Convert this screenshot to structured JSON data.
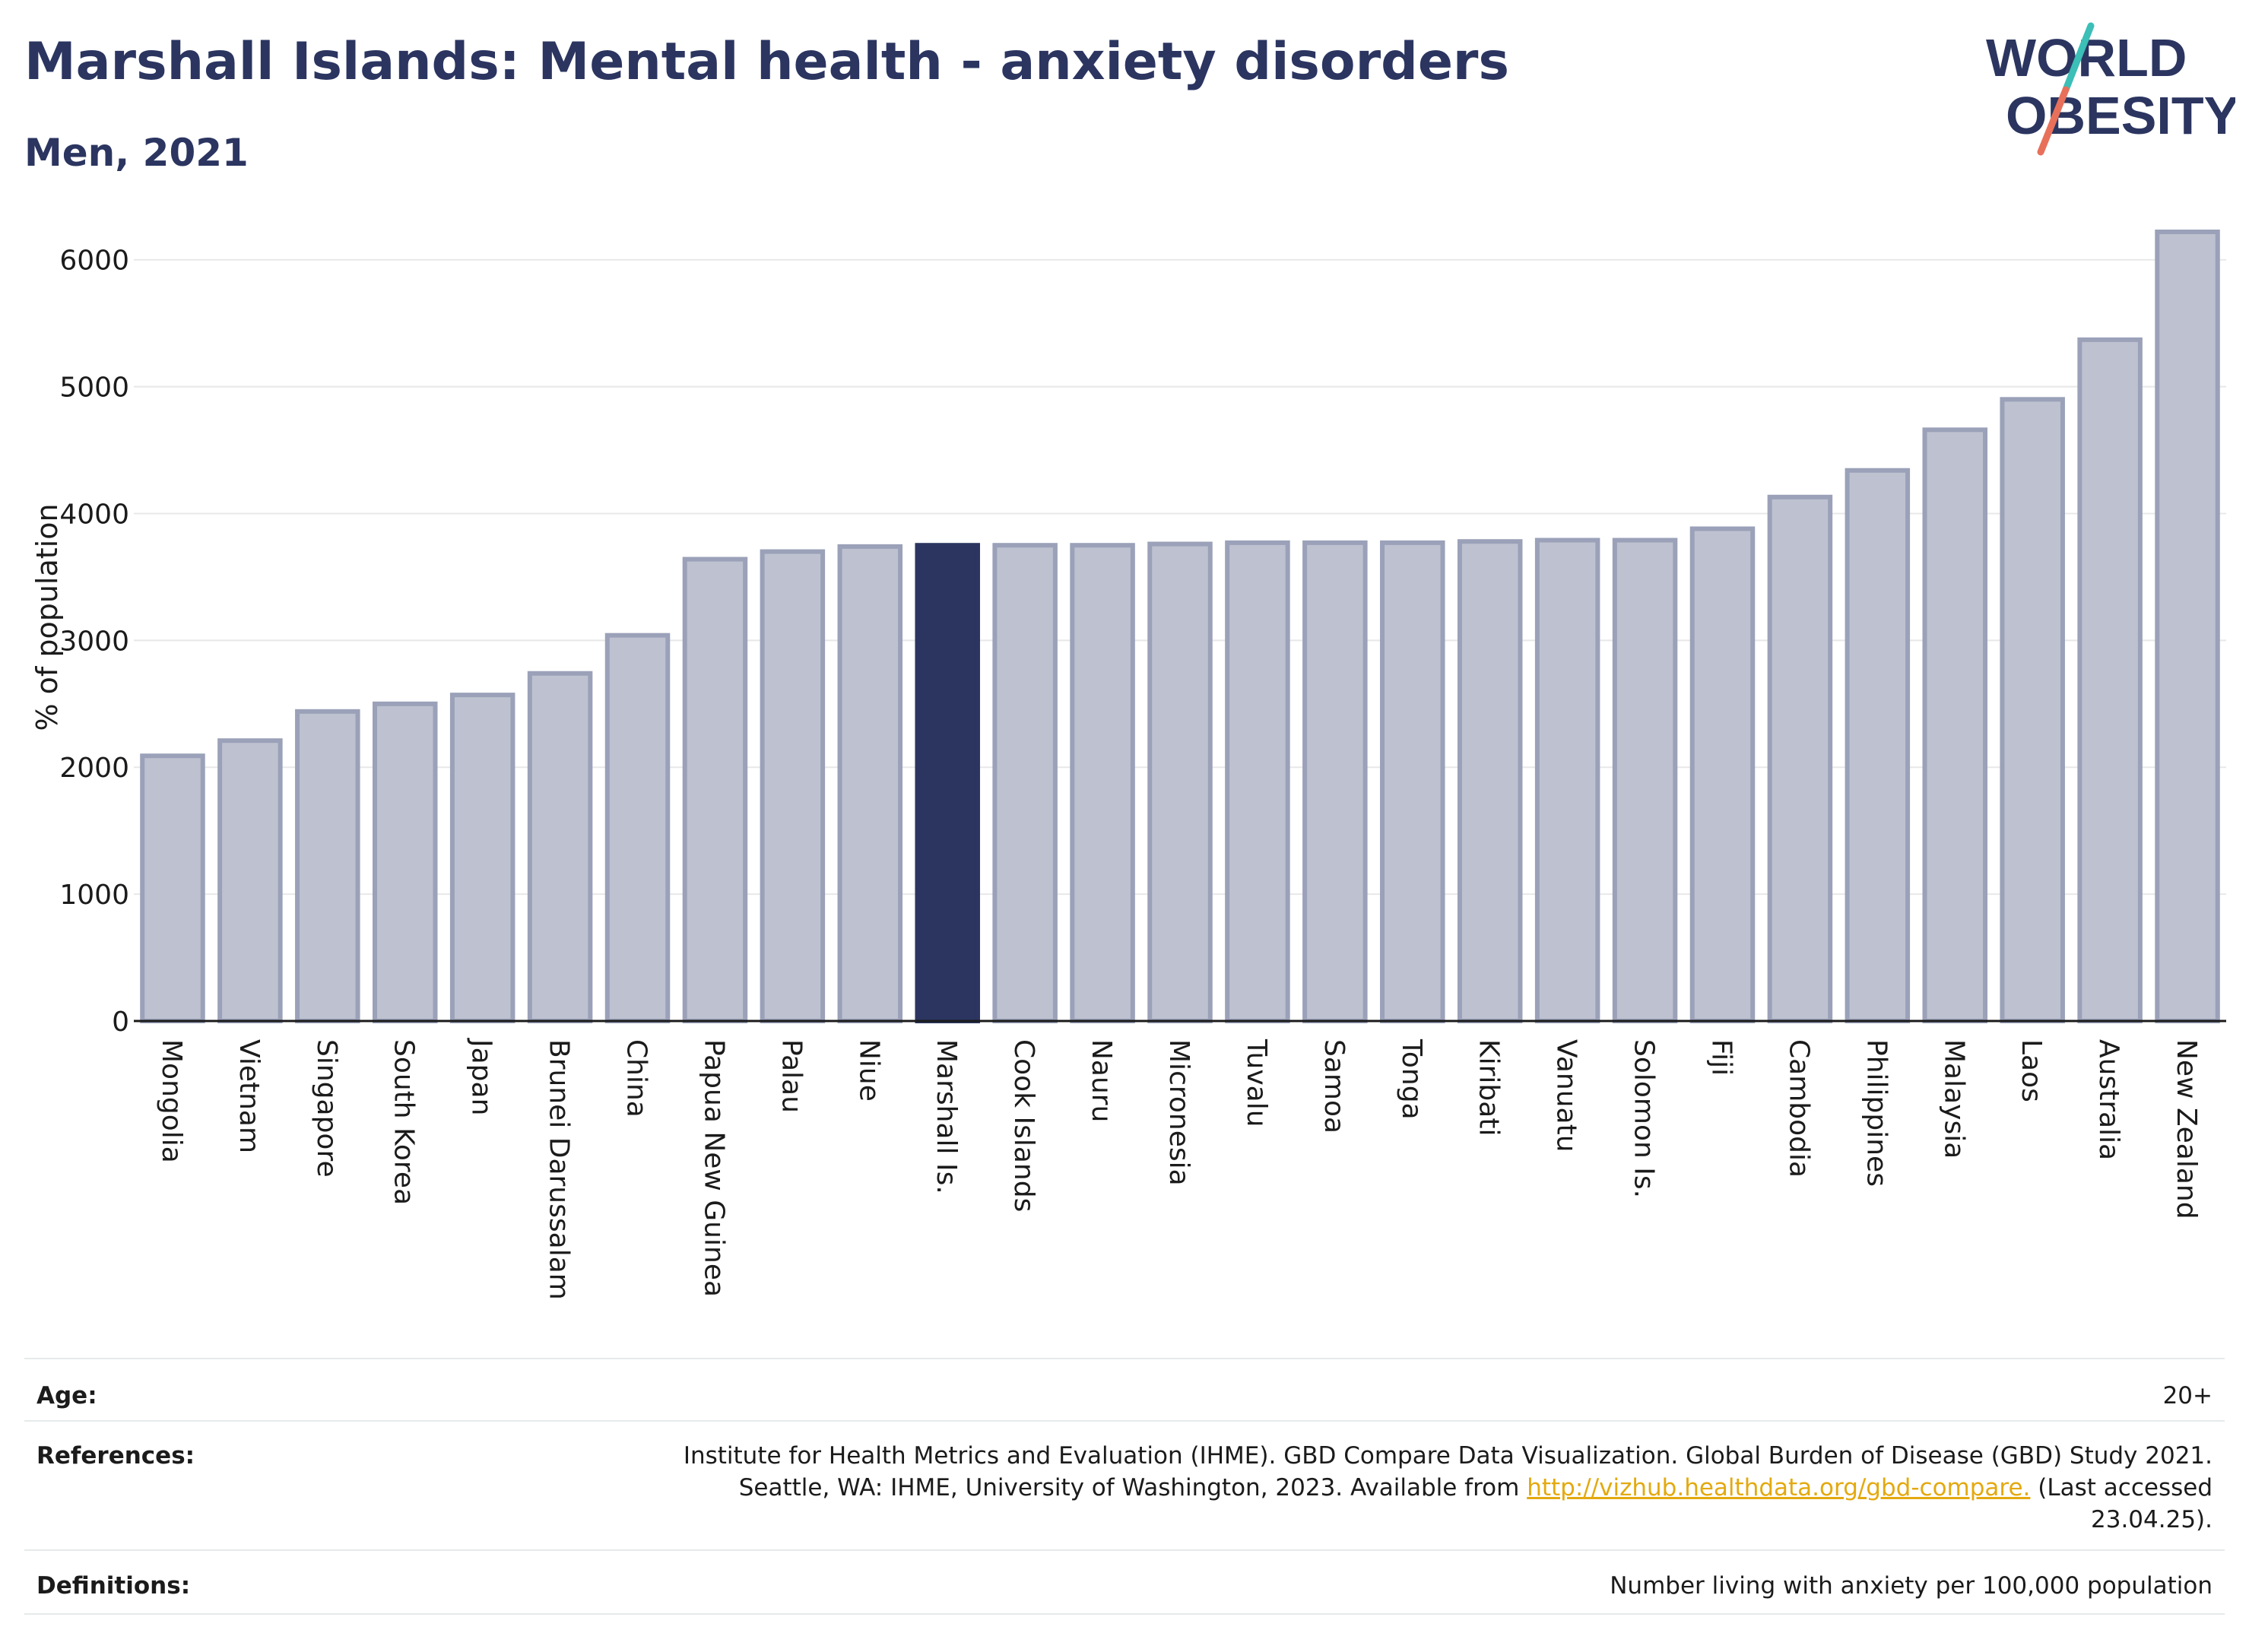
{
  "header": {
    "title": "Marshall Islands: Mental health - anxiety disorders",
    "subtitle": "Men, 2021",
    "logo_text": [
      "WORLD",
      "OBESITY"
    ]
  },
  "colors": {
    "title": "#2b3560",
    "bar": "#bec2d0",
    "bar_border": "#9aa1b8",
    "highlight": "#2b3560",
    "grid": "#e8e8e8",
    "link": "#e3a90f",
    "logo_teal": "#3bbfb6",
    "logo_coral": "#e8705a"
  },
  "chart_data": {
    "type": "bar",
    "title": "Marshall Islands: Mental health - anxiety disorders",
    "subtitle": "Men, 2021",
    "xlabel": "",
    "ylabel": "% of population",
    "ylim": [
      0,
      6250
    ],
    "yticks": [
      0,
      1000,
      2000,
      3000,
      4000,
      5000,
      6000
    ],
    "grid": true,
    "highlight": "Marshall Is.",
    "categories": [
      "Mongolia",
      "Vietnam",
      "Singapore",
      "South Korea",
      "Japan",
      "Brunei Darussalam",
      "China",
      "Papua New Guinea",
      "Palau",
      "Niue",
      "Marshall Is.",
      "Cook Islands",
      "Nauru",
      "Micronesia",
      "Tuvalu",
      "Samoa",
      "Tonga",
      "Kiribati",
      "Vanuatu",
      "Solomon Is.",
      "Fiji",
      "Cambodia",
      "Philippines",
      "Malaysia",
      "Laos",
      "Australia",
      "New Zealand"
    ],
    "values": [
      2090,
      2210,
      2440,
      2500,
      2570,
      2740,
      3040,
      3640,
      3700,
      3740,
      3750,
      3750,
      3750,
      3760,
      3770,
      3770,
      3770,
      3780,
      3790,
      3790,
      3880,
      4130,
      4340,
      4660,
      4900,
      5370,
      6220
    ]
  },
  "info": {
    "age_label": "Age:",
    "age_value": "20+",
    "references_label": "References:",
    "references_line1": "Institute for Health Metrics and Evaluation (IHME). GBD Compare Data Visualization. Global Burden of Disease (GBD) Study 2021.",
    "references_line2_pre": "Seattle, WA: IHME, University of Washington, 2023. Available from ",
    "references_link": "http://vizhub.healthdata.org/gbd-compare.",
    "references_line2_post": " (Last accessed",
    "references_line3": "23.04.25).",
    "definitions_label": "Definitions:",
    "definitions_value": "Number living with anxiety per 100,000 population"
  }
}
